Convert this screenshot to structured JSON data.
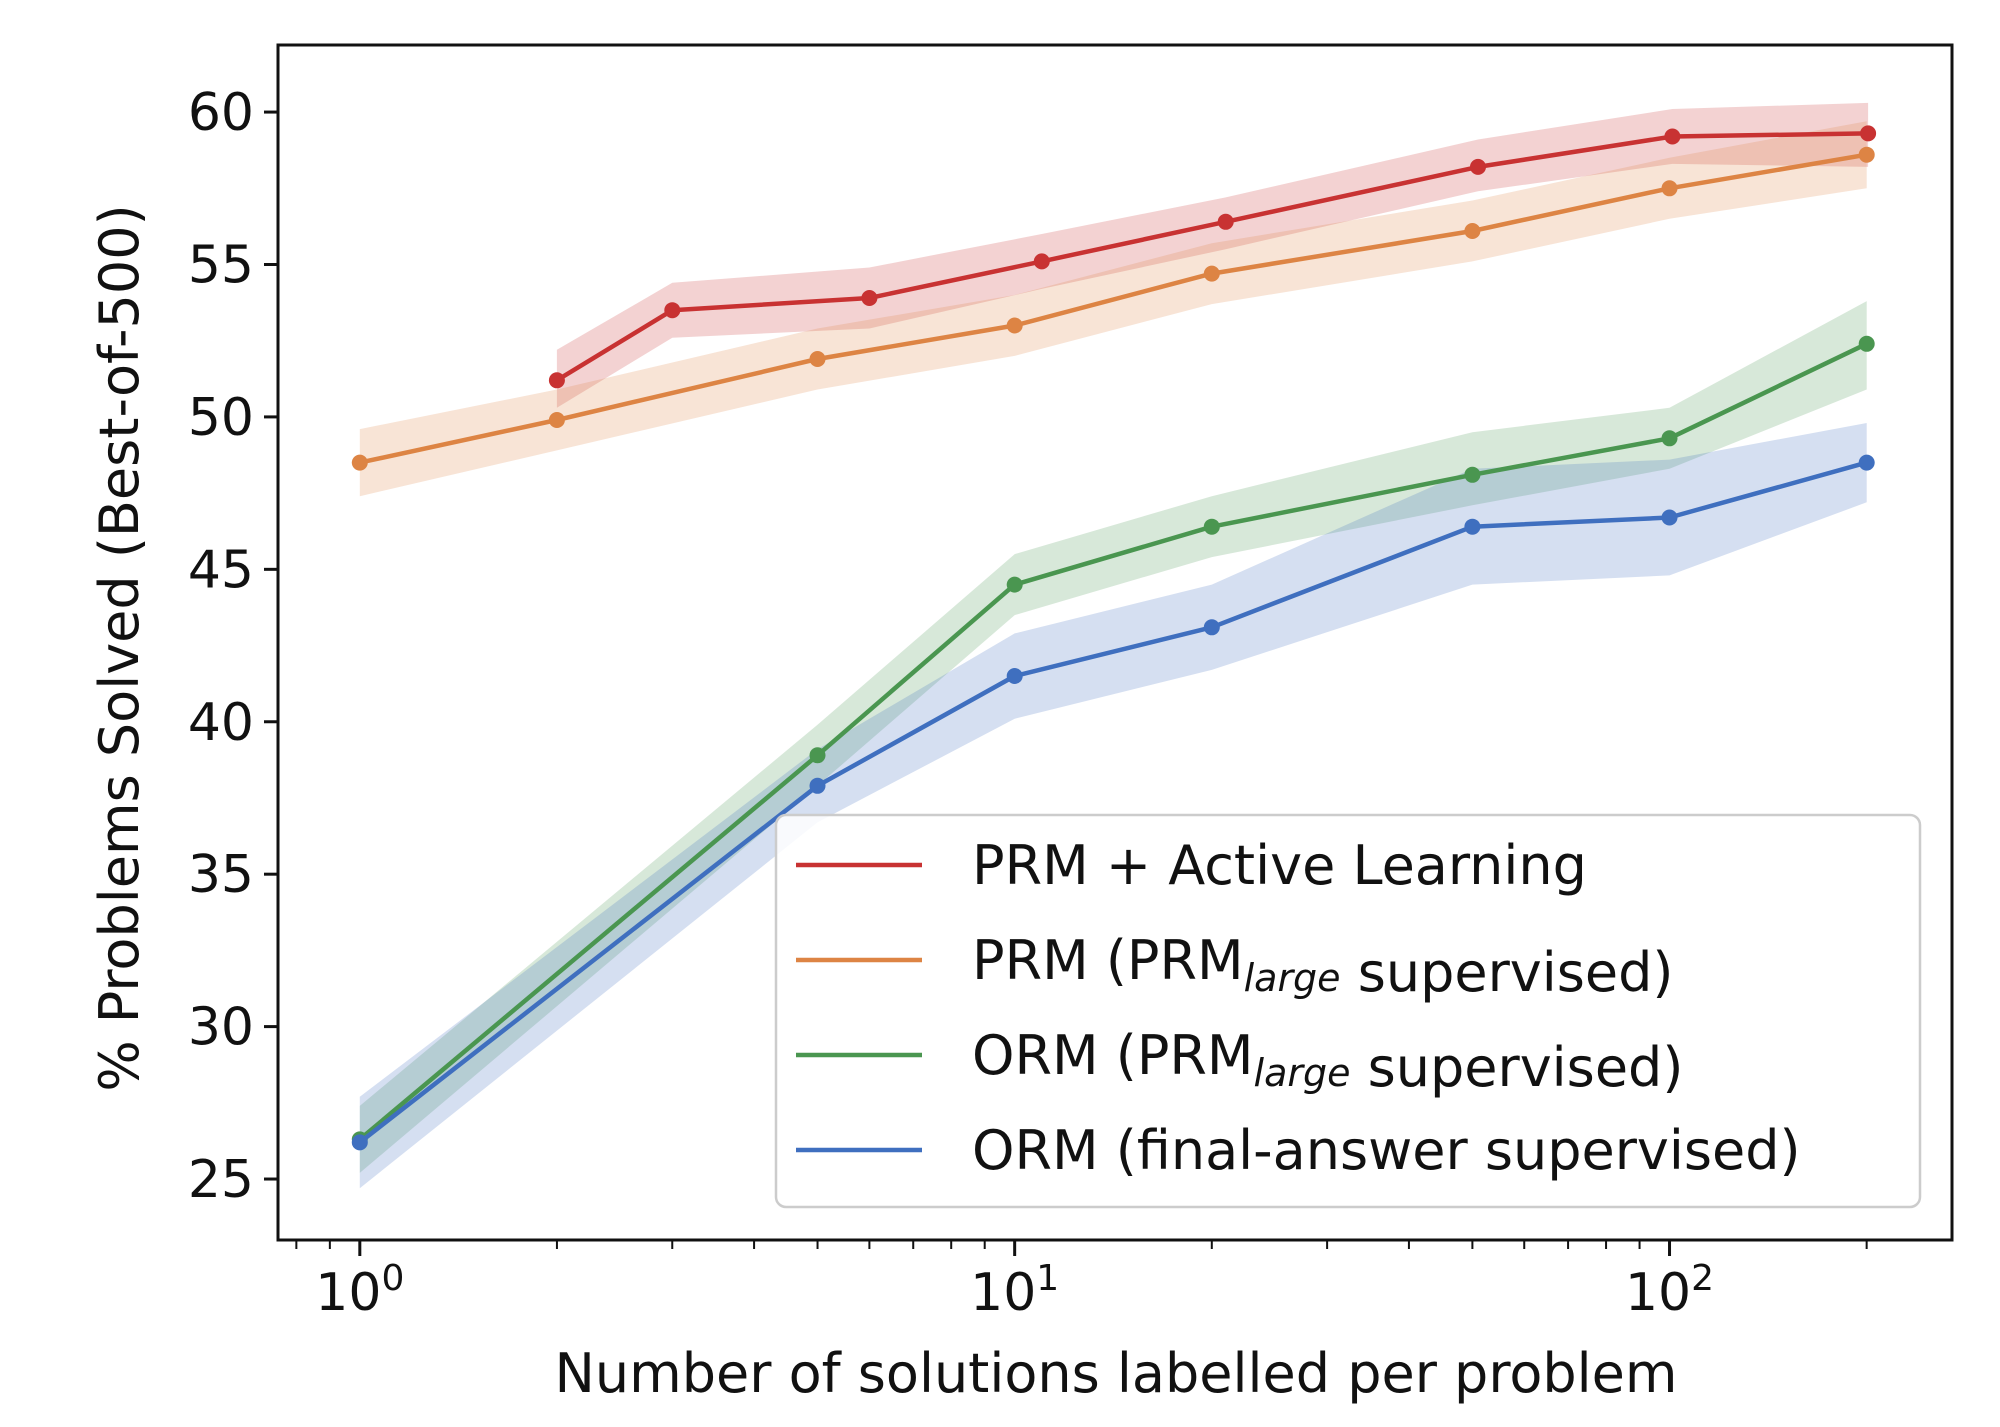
{
  "chart_data": {
    "type": "line",
    "xscale": "log",
    "xlabel": "Number of solutions labelled per problem",
    "ylabel": "% Problems Solved (Best-of-500)",
    "xlim": [
      0.75,
      270
    ],
    "ylim": [
      23,
      62.2
    ],
    "yticks": [
      25,
      30,
      35,
      40,
      45,
      50,
      55,
      60
    ],
    "xticks": [
      {
        "value": 1,
        "base": "10",
        "exp": "0"
      },
      {
        "value": 10,
        "base": "10",
        "exp": "1"
      },
      {
        "value": 100,
        "base": "10",
        "exp": "2"
      }
    ],
    "legend_position": "lower-right",
    "series": [
      {
        "name": "PRM + Active Learning",
        "name_parts": [
          {
            "text": "PRM + Active Learning"
          }
        ],
        "color": "#c83232",
        "x": [
          2,
          3,
          6,
          11,
          21,
          51,
          101,
          201
        ],
        "y": [
          51.2,
          53.5,
          53.9,
          55.1,
          56.4,
          58.2,
          59.2,
          59.3
        ],
        "lower": [
          50.3,
          52.6,
          52.9,
          54.2,
          55.5,
          57.4,
          58.3,
          58.2
        ],
        "upper": [
          52.2,
          54.4,
          54.9,
          56.0,
          57.2,
          59.1,
          60.1,
          60.3
        ]
      },
      {
        "name": "PRM (PRMlarge supervised)",
        "name_parts": [
          {
            "text": "PRM (PRM"
          },
          {
            "text": "large",
            "sub": true
          },
          {
            "text": " supervised)"
          }
        ],
        "color": "#dd8444",
        "x": [
          1,
          2,
          5,
          10,
          20,
          50,
          100,
          200
        ],
        "y": [
          48.5,
          49.9,
          51.9,
          53.0,
          54.7,
          56.1,
          57.5,
          58.6
        ],
        "lower": [
          47.4,
          48.9,
          50.9,
          52.0,
          53.7,
          55.1,
          56.5,
          57.5
        ],
        "upper": [
          49.6,
          50.9,
          52.9,
          54.0,
          55.7,
          57.1,
          58.5,
          59.7
        ]
      },
      {
        "name": "ORM (PRMlarge supervised)",
        "name_parts": [
          {
            "text": "ORM (PRM"
          },
          {
            "text": "large",
            "sub": true
          },
          {
            "text": " supervised)"
          }
        ],
        "color": "#4a9650",
        "x": [
          1,
          5,
          10,
          20,
          50,
          100,
          200
        ],
        "y": [
          26.3,
          38.9,
          44.5,
          46.4,
          48.1,
          49.3,
          52.4
        ],
        "lower": [
          25.2,
          37.9,
          43.5,
          45.4,
          47.1,
          48.3,
          50.9
        ],
        "upper": [
          27.4,
          39.9,
          45.5,
          47.4,
          49.5,
          50.3,
          53.8
        ]
      },
      {
        "name": "ORM (final-answer supervised)",
        "name_parts": [
          {
            "text": "ORM (final-answer supervised)"
          }
        ],
        "color": "#3f6fbf",
        "x": [
          1,
          5,
          10,
          20,
          50,
          100,
          200
        ],
        "y": [
          26.2,
          37.9,
          41.5,
          43.1,
          46.4,
          46.7,
          48.5
        ],
        "lower": [
          24.7,
          36.7,
          40.1,
          41.7,
          44.5,
          44.8,
          47.2
        ],
        "upper": [
          27.7,
          39.1,
          42.9,
          44.5,
          48.3,
          48.6,
          49.8
        ]
      }
    ]
  }
}
